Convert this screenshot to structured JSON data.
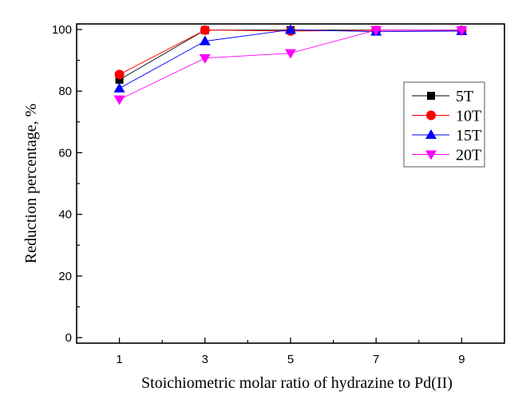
{
  "chart_data": {
    "type": "line",
    "title": "",
    "xlabel": "Stoichiometric molar ratio of hydrazine to Pd(II)",
    "ylabel": "Reduction percentage, %",
    "xlim": [
      0,
      10
    ],
    "ylim": [
      -1.8,
      101.8
    ],
    "xticks": [
      1,
      3,
      5,
      7,
      9
    ],
    "xticks_minor": [
      2,
      4,
      6,
      8
    ],
    "yticks": [
      0,
      20,
      40,
      60,
      80,
      100
    ],
    "yticks_minor": [
      10,
      30,
      50,
      70,
      90
    ],
    "grid": false,
    "legend_position": "right",
    "x": [
      1,
      3,
      5,
      7,
      9
    ],
    "series": [
      {
        "name": "5T",
        "color": "#000000",
        "marker": "square",
        "values": [
          83.7,
          99.8,
          99.8,
          99.8,
          99.8
        ]
      },
      {
        "name": "10T",
        "color": "#ff0000",
        "marker": "circle",
        "values": [
          85.4,
          99.8,
          99.5,
          99.7,
          99.7
        ]
      },
      {
        "name": "15T",
        "color": "#0000ff",
        "marker": "triangle-up",
        "values": [
          80.9,
          96.2,
          99.9,
          99.3,
          99.5
        ]
      },
      {
        "name": "20T",
        "color": "#ff00ff",
        "marker": "triangle-down",
        "values": [
          77.3,
          90.7,
          92.3,
          99.8,
          99.7
        ]
      }
    ]
  }
}
